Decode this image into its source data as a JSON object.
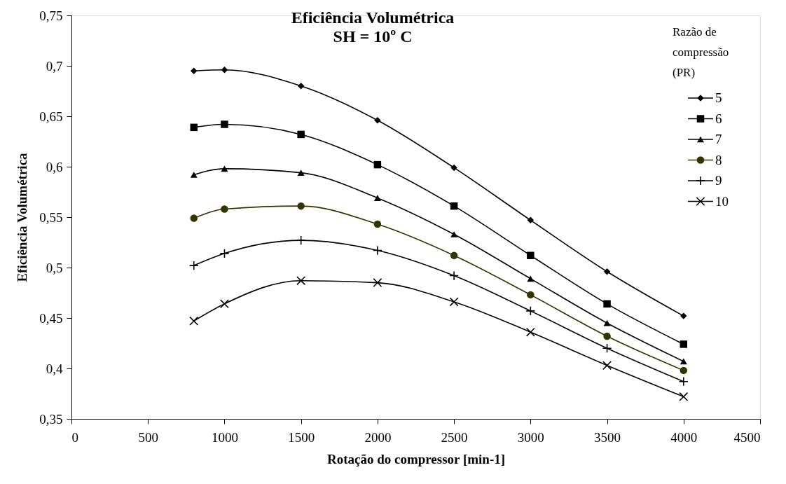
{
  "chart_data": {
    "type": "line",
    "title": "Eficiência Volumétrica",
    "subtitle": "SH = 10º C",
    "xlabel": "Rotação do compressor [min-1]",
    "ylabel": "Eficiência Volumétrica",
    "legend_title": "Razão de\ncompressão\n(PR)",
    "legend": "top right",
    "x": [
      800,
      1000,
      1500,
      2000,
      2500,
      3000,
      3500,
      4000
    ],
    "xlim": [
      0,
      4500
    ],
    "xticks": [
      0,
      500,
      1000,
      1500,
      2000,
      2500,
      3000,
      3500,
      4000,
      4500
    ],
    "ylim": [
      0.35,
      0.75
    ],
    "yticks": [
      {
        "value": 0.35,
        "label": "0,35"
      },
      {
        "value": 0.4,
        "label": "0,4"
      },
      {
        "value": 0.45,
        "label": "0,45"
      },
      {
        "value": 0.5,
        "label": "0,5"
      },
      {
        "value": 0.55,
        "label": "0,55"
      },
      {
        "value": 0.6,
        "label": "0,6"
      },
      {
        "value": 0.65,
        "label": "0,65"
      },
      {
        "value": 0.7,
        "label": "0,7"
      },
      {
        "value": 0.75,
        "label": "0,75"
      }
    ],
    "line_style": "solid",
    "series": [
      {
        "name": "5",
        "color": "#000000",
        "marker": "diamond",
        "values": [
          0.695,
          0.696,
          0.68,
          0.646,
          0.599,
          0.547,
          0.496,
          0.452
        ]
      },
      {
        "name": "6",
        "color": "#000000",
        "marker": "square",
        "values": [
          0.639,
          0.642,
          0.632,
          0.602,
          0.561,
          0.512,
          0.464,
          0.424
        ]
      },
      {
        "name": "7",
        "color": "#000000",
        "marker": "triangle",
        "values": [
          0.592,
          0.598,
          0.594,
          0.569,
          0.533,
          0.489,
          0.445,
          0.407
        ]
      },
      {
        "name": "8",
        "color": "#333300",
        "marker": "circle",
        "values": [
          0.549,
          0.558,
          0.561,
          0.543,
          0.512,
          0.473,
          0.432,
          0.398
        ]
      },
      {
        "name": "9",
        "color": "#000000",
        "marker": "cross",
        "values": [
          0.502,
          0.514,
          0.527,
          0.517,
          0.492,
          0.457,
          0.42,
          0.387
        ]
      },
      {
        "name": "10",
        "color": "#000000",
        "marker": "x",
        "values": [
          0.447,
          0.464,
          0.487,
          0.485,
          0.466,
          0.436,
          0.403,
          0.372
        ]
      }
    ]
  }
}
